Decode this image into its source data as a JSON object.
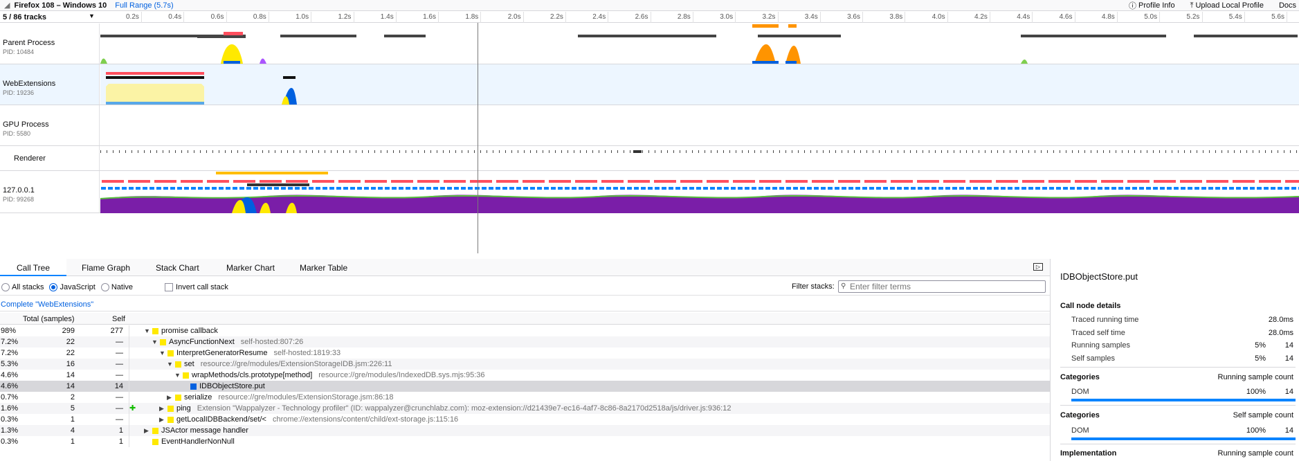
{
  "topbar": {
    "title": "Firefox 108 – Windows 10",
    "range": "Full Range (5.7s)",
    "profile_info": "Profile Info",
    "upload": "Upload Local Profile",
    "docs": "Docs"
  },
  "ruler": {
    "tracks_label": "5 / 86 tracks",
    "ticks": [
      "0.2s",
      "0.4s",
      "0.6s",
      "0.8s",
      "1.0s",
      "1.2s",
      "1.4s",
      "1.6s",
      "1.8s",
      "2.0s",
      "2.2s",
      "2.4s",
      "2.6s",
      "2.8s",
      "3.0s",
      "3.2s",
      "3.4s",
      "3.6s",
      "3.8s",
      "4.0s",
      "4.2s",
      "4.4s",
      "4.6s",
      "4.8s",
      "5.0s",
      "5.2s",
      "5.4s",
      "5.6s"
    ]
  },
  "tracks": [
    {
      "name": "Parent Process",
      "pid": "PID: 10484"
    },
    {
      "name": "WebExtensions",
      "pid": "PID: 19236"
    },
    {
      "name": "GPU Process",
      "pid": "PID: 5580"
    },
    {
      "name": "Renderer",
      "pid": ""
    },
    {
      "name": "127.0.0.1",
      "pid": "PID: 99268"
    }
  ],
  "tabs": [
    "Call Tree",
    "Flame Graph",
    "Stack Chart",
    "Marker Chart",
    "Marker Table"
  ],
  "settings": {
    "all_stacks": "All stacks",
    "javascript": "JavaScript",
    "native": "Native",
    "invert": "Invert call stack",
    "filter_label": "Filter stacks:",
    "filter_placeholder": "Enter filter terms"
  },
  "breadcrumb": "Complete \"WebExtensions\"",
  "tree_header": {
    "total": "Total (samples)",
    "self": "Self"
  },
  "rows": [
    {
      "pct": "98%",
      "total": "299",
      "self": "277",
      "depth": 0,
      "twisty": "▼",
      "color": "#ffe900",
      "fn": "promise callback",
      "lib": "",
      "sel": false,
      "ext": false
    },
    {
      "pct": "7.2%",
      "total": "22",
      "self": "—",
      "depth": 1,
      "twisty": "▼",
      "color": "#ffe900",
      "fn": "AsyncFunctionNext",
      "lib": "self-hosted:807:26",
      "sel": false,
      "ext": false
    },
    {
      "pct": "7.2%",
      "total": "22",
      "self": "—",
      "depth": 2,
      "twisty": "▼",
      "color": "#ffe900",
      "fn": "InterpretGeneratorResume",
      "lib": "self-hosted:1819:33",
      "sel": false,
      "ext": false
    },
    {
      "pct": "5.3%",
      "total": "16",
      "self": "—",
      "depth": 3,
      "twisty": "▼",
      "color": "#ffe900",
      "fn": "set",
      "lib": "resource://gre/modules/ExtensionStorageIDB.jsm:226:11",
      "sel": false,
      "ext": false
    },
    {
      "pct": "4.6%",
      "total": "14",
      "self": "—",
      "depth": 4,
      "twisty": "▼",
      "color": "#ffe900",
      "fn": "wrapMethods/cls.prototype[method]",
      "lib": "resource://gre/modules/IndexedDB.sys.mjs:95:36",
      "sel": false,
      "ext": false
    },
    {
      "pct": "4.6%",
      "total": "14",
      "self": "14",
      "depth": 5,
      "twisty": "",
      "color": "#0060df",
      "fn": "IDBObjectStore.put",
      "lib": "",
      "sel": true,
      "ext": false
    },
    {
      "pct": "0.7%",
      "total": "2",
      "self": "—",
      "depth": 3,
      "twisty": "▶",
      "color": "#ffe900",
      "fn": "serialize",
      "lib": "resource://gre/modules/ExtensionStorage.jsm:86:18",
      "sel": false,
      "ext": false
    },
    {
      "pct": "1.6%",
      "total": "5",
      "self": "—",
      "depth": 2,
      "twisty": "▶",
      "color": "#ffe900",
      "fn": "ping",
      "lib": "Extension \"Wappalyzer - Technology profiler\" (ID: wappalyzer@crunchlabz.com): moz-extension://d21439e7-ec16-4af7-8c86-8a2170d2518a/js/driver.js:936:12",
      "sel": false,
      "ext": true
    },
    {
      "pct": "0.3%",
      "total": "1",
      "self": "—",
      "depth": 2,
      "twisty": "▶",
      "color": "#ffe900",
      "fn": "getLocalIDBBackend/set/<",
      "lib": "chrome://extensions/content/child/ext-storage.js:115:16",
      "sel": false,
      "ext": false
    },
    {
      "pct": "1.3%",
      "total": "4",
      "self": "1",
      "depth": 0,
      "twisty": "▶",
      "color": "#ffe900",
      "fn": "JSActor message handler",
      "lib": "",
      "sel": false,
      "ext": false
    },
    {
      "pct": "0.3%",
      "total": "1",
      "self": "1",
      "depth": 0,
      "twisty": "",
      "color": "#ffe900",
      "fn": "EventHandlerNonNull",
      "lib": "",
      "sel": false,
      "ext": false
    }
  ],
  "sidebar": {
    "title": "IDBObjectStore.put",
    "call_node_details": "Call node details",
    "traced_running_time": "Traced running time",
    "traced_running_time_val": "28.0ms",
    "traced_self_time": "Traced self time",
    "traced_self_time_val": "28.0ms",
    "running_samples": "Running samples",
    "running_samples_pct": "5%",
    "running_samples_val": "14",
    "self_samples": "Self samples",
    "self_samples_pct": "5%",
    "self_samples_val": "14",
    "categories1": "Categories",
    "categories1_right": "Running sample count",
    "dom1": "DOM",
    "dom1_pct": "100%",
    "dom1_val": "14",
    "categories2": "Categories",
    "categories2_right": "Self sample count",
    "dom2": "DOM",
    "dom2_pct": "100%",
    "dom2_val": "14",
    "implementation": "Implementation",
    "implementation_right": "Running sample count"
  }
}
